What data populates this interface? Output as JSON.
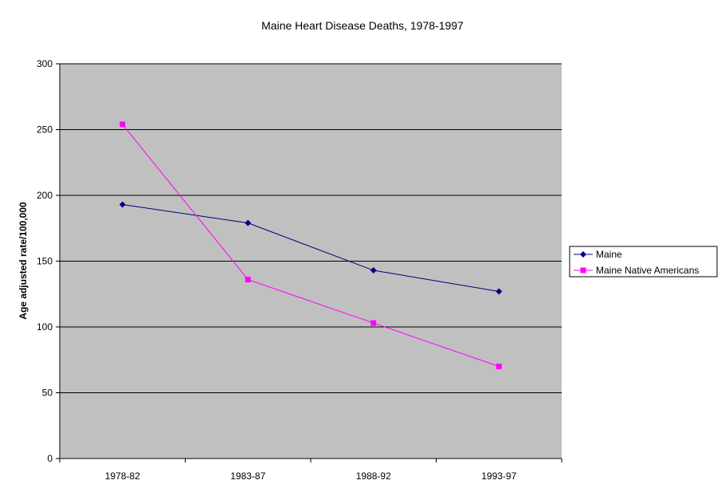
{
  "chart_data": {
    "type": "line",
    "title": "Maine Heart Disease Deaths, 1978-1997",
    "xlabel": "",
    "ylabel": "Age adjusted rate/100,000",
    "categories": [
      "1978-82",
      "1983-87",
      "1988-92",
      "1993-97"
    ],
    "ylim": [
      0,
      300
    ],
    "yticks": [
      0,
      50,
      100,
      150,
      200,
      250,
      300
    ],
    "grid": true,
    "plot_background": "#c0c0c0",
    "legend_position": "right",
    "series": [
      {
        "name": "Maine",
        "values": [
          193,
          179,
          143,
          127
        ],
        "color": "#000080",
        "marker": "diamond"
      },
      {
        "name": "Maine Native Americans",
        "values": [
          254,
          136,
          103,
          70
        ],
        "color": "#ff00ff",
        "marker": "square"
      }
    ]
  }
}
